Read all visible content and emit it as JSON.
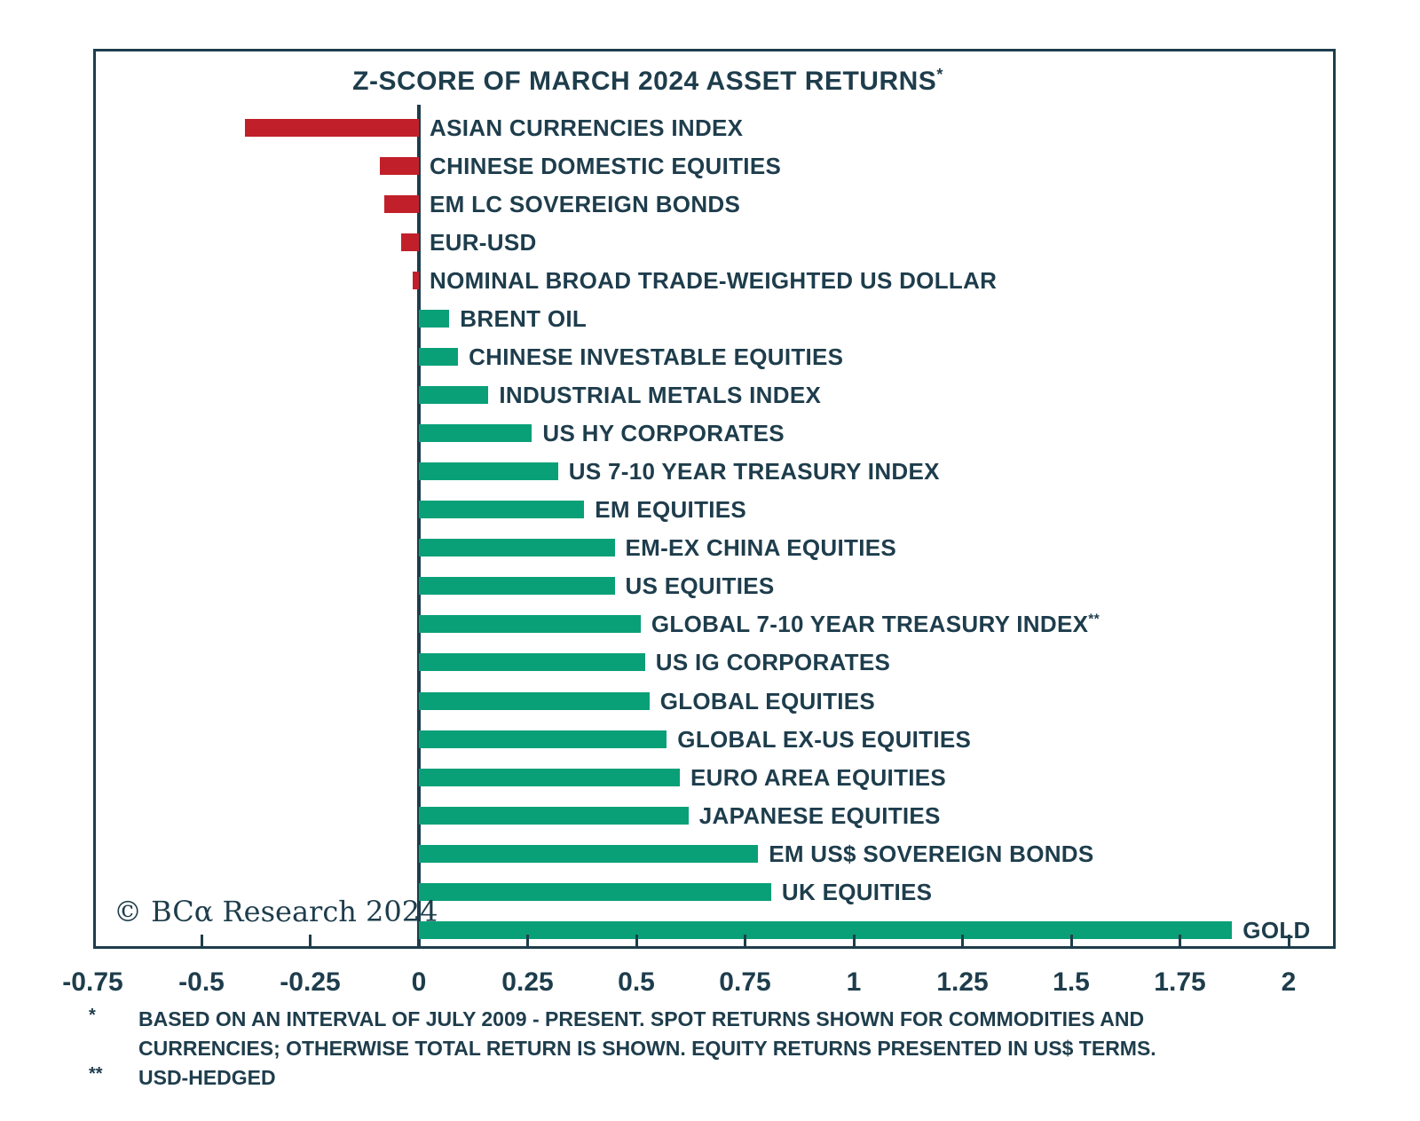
{
  "branding": {
    "copyright": "© BCα Research 2024"
  },
  "chart_data": {
    "type": "bar",
    "orientation": "horizontal",
    "title": "Z-SCORE OF MARCH 2024 ASSET RETURNS",
    "title_superscript": "*",
    "xlabel": "",
    "ylabel": "",
    "grid": false,
    "legend": false,
    "xlim": [
      -0.75,
      2.1
    ],
    "xticks": [
      -0.75,
      -0.5,
      -0.25,
      0,
      0.25,
      0.5,
      0.75,
      1,
      1.25,
      1.5,
      1.75,
      2
    ],
    "xtick_labels": [
      "-0.75",
      "-0.5",
      "-0.25",
      "0",
      "0.25",
      "0.5",
      "0.75",
      "1",
      "1.25",
      "1.5",
      "1.75",
      "2"
    ],
    "bar_colors": {
      "positive": "#09a078",
      "negative": "#c1202a"
    },
    "categories": [
      "ASIAN CURRENCIES INDEX",
      "CHINESE DOMESTIC EQUITIES",
      "EM LC SOVEREIGN BONDS",
      "EUR-USD",
      "NOMINAL BROAD TRADE-WEIGHTED US DOLLAR",
      "BRENT OIL",
      "CHINESE INVESTABLE EQUITIES",
      "INDUSTRIAL METALS INDEX",
      "US HY CORPORATES",
      "US 7-10 YEAR TREASURY INDEX",
      "EM EQUITIES",
      "EM-EX CHINA EQUITIES",
      "US EQUITIES",
      "GLOBAL 7-10 YEAR TREASURY INDEX",
      "US IG CORPORATES",
      "GLOBAL EQUITIES",
      "GLOBAL EX-US EQUITIES",
      "EURO AREA EQUITIES",
      "JAPANESE EQUITIES",
      "EM US$ SOVEREIGN BONDS",
      "UK EQUITIES",
      "GOLD"
    ],
    "values": [
      -0.4,
      -0.09,
      -0.08,
      -0.04,
      -0.015,
      0.07,
      0.09,
      0.16,
      0.26,
      0.32,
      0.38,
      0.45,
      0.45,
      0.51,
      0.52,
      0.53,
      0.57,
      0.6,
      0.62,
      0.78,
      0.81,
      1.87
    ],
    "superscripts": [
      "",
      "",
      "",
      "",
      "",
      "",
      "",
      "",
      "",
      "",
      "",
      "",
      "",
      "**",
      "",
      "",
      "",
      "",
      "",
      "",
      "",
      ""
    ]
  },
  "footnotes": [
    {
      "marker": "*",
      "text": "BASED ON AN INTERVAL OF JULY 2009 - PRESENT. SPOT RETURNS SHOWN FOR COMMODITIES AND CURRENCIES; OTHERWISE TOTAL RETURN IS SHOWN. EQUITY RETURNS PRESENTED IN US$ TERMS."
    },
    {
      "marker": "**",
      "text": "USD-HEDGED"
    }
  ]
}
